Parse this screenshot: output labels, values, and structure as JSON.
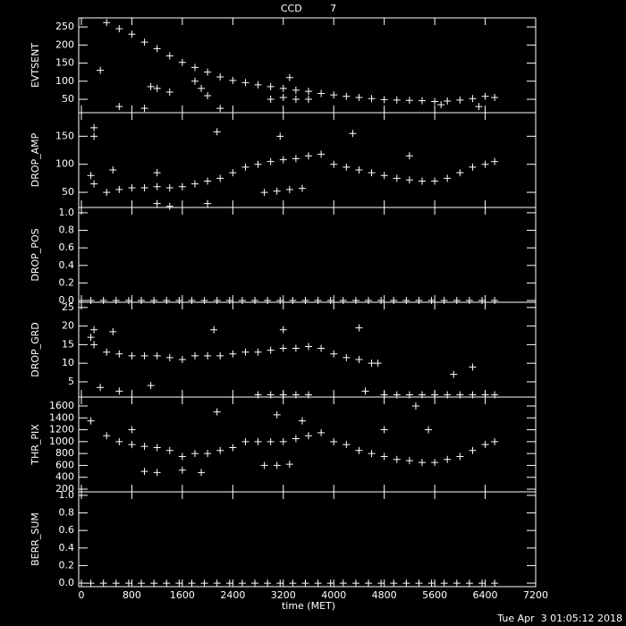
{
  "chart_data": [
    {
      "type": "scatter",
      "title": "CCD         7",
      "ylabel": "EVTSENT",
      "color": "#ffffff",
      "xlim": [
        0,
        7200
      ],
      "xticks": [
        0,
        800,
        1600,
        2400,
        3200,
        4000,
        4800,
        5600,
        6400,
        7200
      ],
      "ylim": [
        13,
        275
      ],
      "yticks": [
        50,
        100,
        150,
        200,
        250
      ],
      "x": [
        400,
        600,
        800,
        1000,
        1200,
        1400,
        1600,
        1800,
        2000,
        2200,
        2400,
        2600,
        2800,
        3000,
        3200,
        3400,
        3600,
        3800,
        4000,
        4200,
        4400,
        4600,
        4800,
        5000,
        5200,
        5400,
        5600,
        5800,
        6000,
        6200,
        6400,
        6550,
        300,
        600,
        1100,
        1200,
        1400,
        1800,
        1900,
        2000,
        2200,
        3000,
        3200,
        3300,
        3400,
        3600,
        1000,
        5700,
        6300
      ],
      "values": [
        262,
        245,
        230,
        208,
        190,
        170,
        152,
        138,
        125,
        112,
        102,
        96,
        90,
        85,
        80,
        75,
        72,
        66,
        62,
        58,
        55,
        52,
        49,
        48,
        47,
        46,
        44,
        45,
        48,
        52,
        58,
        55,
        130,
        30,
        85,
        80,
        70,
        100,
        80,
        60,
        25,
        50,
        55,
        110,
        50,
        50,
        25,
        35,
        30
      ]
    },
    {
      "type": "scatter",
      "ylabel": "DROP_AMP",
      "color": "#ffffff",
      "xlim": [
        0,
        7200
      ],
      "xticks": [
        0,
        800,
        1600,
        2400,
        3200,
        4000,
        4800,
        5600,
        6400,
        7200
      ],
      "ylim": [
        23,
        192
      ],
      "yticks": [
        50,
        100,
        150
      ],
      "x": [
        150,
        200,
        400,
        600,
        800,
        1000,
        1200,
        1400,
        1600,
        1800,
        2000,
        2200,
        2400,
        2600,
        2800,
        3000,
        3200,
        3400,
        3600,
        3800,
        4000,
        4200,
        4400,
        4600,
        4800,
        5000,
        5200,
        5400,
        5600,
        5800,
        6000,
        6200,
        6400,
        6550,
        200,
        200,
        500,
        2150,
        3150,
        4300,
        5200,
        2900,
        3100,
        3300,
        3500,
        1200,
        1400,
        2000,
        1200
      ],
      "values": [
        80,
        65,
        50,
        55,
        58,
        58,
        60,
        58,
        60,
        65,
        70,
        75,
        85,
        95,
        100,
        105,
        108,
        110,
        115,
        118,
        100,
        95,
        90,
        85,
        80,
        75,
        72,
        70,
        70,
        75,
        85,
        95,
        100,
        105,
        165,
        150,
        90,
        158,
        150,
        155,
        115,
        50,
        52,
        55,
        57,
        30,
        25,
        30,
        85
      ]
    },
    {
      "type": "scatter",
      "ylabel": "DROP_POS",
      "color": "#ffffff",
      "xlim": [
        0,
        7200
      ],
      "xticks": [
        0,
        800,
        1600,
        2400,
        3200,
        4000,
        4800,
        5600,
        6400,
        7200
      ],
      "ylim": [
        -0.02,
        1.06
      ],
      "yticks": [
        {
          "value": 0,
          "label": "0.0"
        },
        0.2,
        0.4,
        0.6,
        0.8,
        {
          "value": 1,
          "label": "1.0"
        }
      ],
      "x": [
        150,
        350,
        550,
        750,
        950,
        1150,
        1350,
        1550,
        1750,
        1950,
        2150,
        2350,
        2550,
        2750,
        2950,
        3150,
        3350,
        3550,
        3750,
        3950,
        4150,
        4350,
        4550,
        4750,
        4950,
        5150,
        5350,
        5550,
        5750,
        5950,
        6150,
        6350,
        6550
      ],
      "values": [
        0,
        0,
        0,
        0,
        0,
        0,
        0,
        0,
        0,
        0,
        0,
        0,
        0,
        0,
        0,
        0,
        0,
        0,
        0,
        0,
        0,
        0,
        0,
        0,
        0,
        0,
        0,
        0,
        0,
        0,
        0,
        0,
        0
      ]
    },
    {
      "type": "scatter",
      "ylabel": "DROP_GRD",
      "color": "#ffffff",
      "xlim": [
        0,
        7200
      ],
      "xticks": [
        0,
        800,
        1600,
        2400,
        3200,
        4000,
        4800,
        5600,
        6400,
        7200
      ],
      "ylim": [
        0.9,
        26.4
      ],
      "yticks": [
        5,
        10,
        15,
        20,
        25
      ],
      "x": [
        150,
        200,
        400,
        600,
        800,
        1000,
        1200,
        1400,
        1600,
        1800,
        2000,
        2200,
        2400,
        2600,
        2800,
        3000,
        3200,
        3400,
        3600,
        3800,
        4000,
        4200,
        4400,
        4600,
        4700,
        2800,
        3000,
        3200,
        3400,
        3600,
        4800,
        5000,
        5200,
        5400,
        5600,
        5800,
        6000,
        6200,
        6400,
        6550,
        200,
        500,
        300,
        600,
        2100,
        3200,
        4400,
        4500,
        5900,
        6200,
        1100
      ],
      "values": [
        17,
        15,
        13,
        12.5,
        12,
        12,
        12,
        11.5,
        11,
        12,
        12,
        12,
        12.5,
        13,
        13,
        13.5,
        14,
        14,
        14.5,
        14,
        12.5,
        11.5,
        11,
        10,
        10,
        1.5,
        1.5,
        1.5,
        1.5,
        1.5,
        1.5,
        1.5,
        1.5,
        1.5,
        1.5,
        1.5,
        1.5,
        1.5,
        1.5,
        1.5,
        19,
        18.5,
        3.5,
        2.5,
        19,
        19,
        19.5,
        2.5,
        7,
        9,
        4
      ]
    },
    {
      "type": "scatter",
      "ylabel": "THR_PIX",
      "color": "#ffffff",
      "xlim": [
        0,
        7200
      ],
      "xticks": [
        0,
        800,
        1600,
        2400,
        3200,
        4000,
        4800,
        5600,
        6400,
        7200
      ],
      "ylim": [
        155,
        1750
      ],
      "yticks": [
        200,
        400,
        600,
        800,
        1000,
        1200,
        1400,
        1600
      ],
      "x": [
        150,
        400,
        600,
        800,
        1000,
        1200,
        1400,
        1600,
        1800,
        2000,
        2200,
        2400,
        2600,
        2800,
        3000,
        3200,
        3400,
        3600,
        3800,
        4000,
        4200,
        4400,
        4600,
        4800,
        5000,
        5200,
        5400,
        5600,
        5800,
        6000,
        6200,
        6400,
        6550,
        1000,
        1200,
        1600,
        1900,
        2150,
        3100,
        3500,
        2900,
        3100,
        3300,
        4800,
        5300,
        5500,
        800
      ],
      "values": [
        1350,
        1100,
        1000,
        950,
        920,
        900,
        850,
        750,
        800,
        800,
        850,
        900,
        1000,
        1000,
        1000,
        1000,
        1050,
        1100,
        1150,
        1000,
        950,
        850,
        800,
        750,
        700,
        680,
        650,
        650,
        700,
        750,
        850,
        950,
        1000,
        500,
        480,
        520,
        480,
        1500,
        1450,
        1350,
        600,
        600,
        620,
        1200,
        1600,
        1200,
        1200
      ]
    },
    {
      "type": "scatter",
      "ylabel": "BERR_SUM",
      "xlabel": "time (MET)",
      "color": "#ffffff",
      "xlim": [
        0,
        7200
      ],
      "xticks": [
        0,
        800,
        1600,
        2400,
        3200,
        4000,
        4800,
        5600,
        6400,
        7200
      ],
      "ylim": [
        -0.04,
        1.04
      ],
      "yticks": [
        {
          "value": 0,
          "label": "0.0"
        },
        0.2,
        0.4,
        0.6,
        0.8,
        {
          "value": 1,
          "label": "1.0"
        }
      ],
      "x": [
        150,
        350,
        550,
        750,
        950,
        1150,
        1350,
        1550,
        1750,
        1950,
        2150,
        2350,
        2550,
        2750,
        2950,
        3150,
        3350,
        3550,
        3750,
        3950,
        4150,
        4350,
        4550,
        4750,
        4950,
        5150,
        5350,
        5550,
        5750,
        5950,
        6150,
        6350,
        6550
      ],
      "values": [
        0,
        0,
        0,
        0,
        0,
        0,
        0,
        0,
        0,
        0,
        0,
        0,
        0,
        0,
        0,
        0,
        0,
        0,
        0,
        0,
        0,
        0,
        0,
        0,
        0,
        0,
        0,
        0,
        0,
        0,
        0,
        0,
        0
      ]
    }
  ],
  "footer": "Tue Apr  3 01:05:12 2018"
}
